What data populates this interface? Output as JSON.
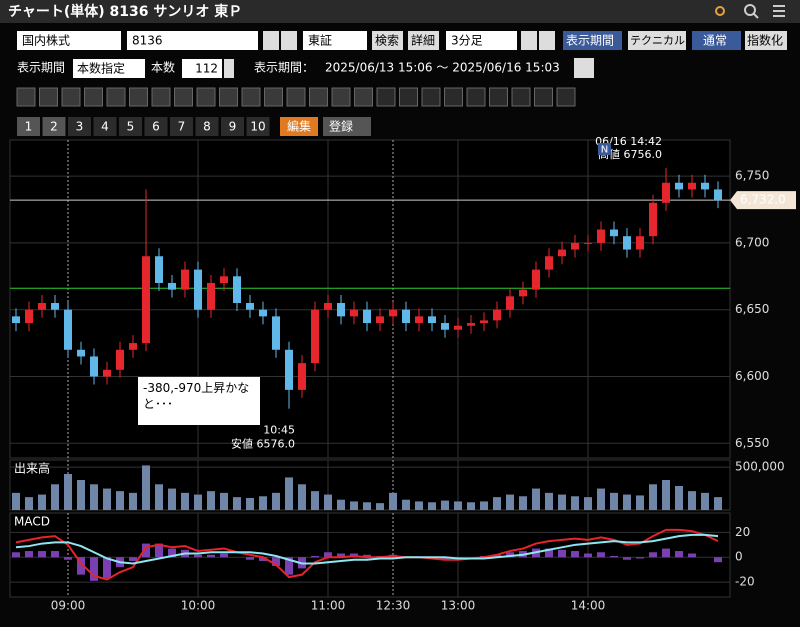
{
  "header": {
    "title": "チャート(単体) 8136 サンリオ 東Ｐ"
  },
  "toolbar": {
    "market": "国内株式",
    "code": "8136",
    "exchange": "東証",
    "search": "検索",
    "detail": "詳細",
    "interval": "3分足",
    "period_button": "表示期間",
    "technical": "テクニカル",
    "normal": "通常",
    "index": "指数化"
  },
  "settings": {
    "period_label": "表示期間",
    "period_mode": "本数指定",
    "count_label": "本数",
    "count": 112,
    "range_label": "表示期間：",
    "range": "2025/06/13 15:06 ～ 2025/06/16 15:03"
  },
  "tabs": [
    "1",
    "2",
    "3",
    "4",
    "5",
    "6",
    "7",
    "8",
    "9",
    "10"
  ],
  "edit": "編集",
  "register": "登録",
  "chart_data": [
    {
      "type": "candlestick",
      "categories": [
        null,
        null,
        null,
        null,
        "09:00",
        null,
        null,
        null,
        null,
        null,
        null,
        null,
        null,
        null,
        "10:00",
        null,
        null,
        null,
        null,
        null,
        null,
        null,
        null,
        null,
        "11:00",
        null,
        null,
        null,
        null,
        "12:30",
        null,
        null,
        null,
        null,
        "13:00",
        null,
        null,
        null,
        null,
        null,
        null,
        null,
        null,
        null,
        "14:00",
        null,
        null,
        null,
        null,
        null,
        null,
        null,
        null,
        null,
        null
      ],
      "open": [
        6645,
        6640,
        6650,
        6655,
        6650,
        6620,
        6615,
        6600,
        6605,
        6620,
        6625,
        6690,
        6670,
        6665,
        6680,
        6650,
        6670,
        6675,
        6655,
        6650,
        6645,
        6620,
        6590,
        6610,
        6650,
        6655,
        6645,
        6650,
        6640,
        6645,
        6650,
        6640,
        6645,
        6640,
        6635,
        6638,
        6640,
        6642,
        6650,
        6660,
        6665,
        6680,
        6690,
        6695,
        6700,
        6700,
        6710,
        6705,
        6695,
        6705,
        6730,
        6745,
        6740,
        6745,
        6740
      ],
      "high": [
        6651,
        6656,
        6661,
        6661,
        6656,
        6626,
        6621,
        6611,
        6626,
        6631,
        6740,
        6696,
        6676,
        6686,
        6686,
        6676,
        6681,
        6681,
        6661,
        6656,
        6651,
        6626,
        6616,
        6656,
        6661,
        6661,
        6656,
        6656,
        6651,
        6656,
        6656,
        6651,
        6651,
        6646,
        6644,
        6646,
        6648,
        6656,
        6666,
        6671,
        6686,
        6696,
        6701,
        6706,
        6706,
        6716,
        6716,
        6711,
        6711,
        6736,
        6756,
        6751,
        6751,
        6751,
        6746
      ],
      "low": [
        6634,
        6634,
        6644,
        6644,
        6614,
        6609,
        6594,
        6594,
        6599,
        6614,
        6619,
        6664,
        6659,
        6659,
        6644,
        6644,
        6664,
        6649,
        6644,
        6639,
        6614,
        6576,
        6584,
        6604,
        6644,
        6639,
        6639,
        6634,
        6634,
        6639,
        6634,
        6634,
        6634,
        6629,
        6629,
        6632,
        6634,
        6636,
        6644,
        6654,
        6659,
        6674,
        6684,
        6689,
        6694,
        6694,
        6699,
        6689,
        6689,
        6699,
        6724,
        6734,
        6734,
        6734,
        6726
      ],
      "close": [
        6640,
        6650,
        6655,
        6650,
        6620,
        6615,
        6600,
        6605,
        6620,
        6625,
        6690,
        6670,
        6665,
        6680,
        6650,
        6670,
        6675,
        6655,
        6650,
        6645,
        6620,
        6590,
        6610,
        6650,
        6655,
        6645,
        6650,
        6640,
        6645,
        6650,
        6640,
        6645,
        6640,
        6635,
        6638,
        6640,
        6642,
        6650,
        6660,
        6665,
        6680,
        6690,
        6695,
        6700,
        6700,
        6710,
        6705,
        6695,
        6705,
        6730,
        6745,
        6740,
        6745,
        6740,
        6732
      ],
      "up_color": "#e5262c",
      "down_color": "#5fb8e8",
      "ylim": [
        6539,
        6777
      ],
      "yticks": [
        {
          "value": 6550,
          "label": "6,550"
        },
        {
          "value": 6600,
          "label": "6,600"
        },
        {
          "value": 6650,
          "label": "6,650"
        },
        {
          "value": 6700,
          "label": "6,700"
        },
        {
          "value": 6750,
          "label": "6,750"
        }
      ],
      "grid": true,
      "last_price": {
        "value": 6732,
        "label": "6,732.0"
      },
      "reference_line": 6666,
      "high_marker": {
        "time": "06/16 14:42",
        "label": "高値 6756.0"
      },
      "low_marker": {
        "time": "10:45",
        "label": "安値 6576.0"
      },
      "news_marker": "N",
      "note": "-380,-970上昇かなと･･･"
    },
    {
      "type": "bar",
      "title": "出来高",
      "color": "#6f86a8",
      "values": [
        200000,
        150000,
        180000,
        300000,
        420000,
        350000,
        300000,
        250000,
        220000,
        200000,
        520000,
        300000,
        250000,
        200000,
        180000,
        220000,
        200000,
        150000,
        140000,
        160000,
        200000,
        380000,
        300000,
        220000,
        180000,
        120000,
        100000,
        90000,
        80000,
        200000,
        120000,
        100000,
        90000,
        110000,
        100000,
        90000,
        100000,
        150000,
        180000,
        160000,
        250000,
        200000,
        180000,
        160000,
        150000,
        250000,
        200000,
        180000,
        170000,
        300000,
        350000,
        280000,
        220000,
        200000,
        150000
      ],
      "ylim": [
        0,
        560000
      ],
      "yticks": [
        {
          "value": 500000,
          "label": "500,000"
        }
      ]
    },
    {
      "type": "line",
      "title": "MACD",
      "series": [
        {
          "color": "#e8232a",
          "values": [
            12,
            14,
            16,
            17,
            10,
            -5,
            -15,
            -18,
            -12,
            -8,
            8,
            10,
            8,
            9,
            5,
            6,
            7,
            4,
            2,
            0,
            -6,
            -16,
            -14,
            -4,
            0,
            0,
            1,
            0,
            0,
            1,
            0,
            0,
            -1,
            -2,
            -2,
            -1,
            0,
            2,
            5,
            7,
            11,
            13,
            14,
            15,
            14,
            16,
            14,
            10,
            11,
            17,
            22,
            22,
            21,
            18,
            13
          ]
        },
        {
          "color": "#8ee6f0",
          "values": [
            8,
            9,
            11,
            12,
            12,
            9,
            4,
            -1,
            -4,
            -5,
            -3,
            -1,
            1,
            3,
            3,
            4,
            4,
            4,
            4,
            3,
            1,
            -2,
            -5,
            -5,
            -4,
            -3,
            -2,
            -2,
            -1,
            -1,
            0,
            0,
            0,
            0,
            -1,
            -1,
            -1,
            0,
            1,
            2,
            4,
            6,
            8,
            10,
            11,
            12,
            13,
            12,
            12,
            13,
            15,
            17,
            18,
            18,
            17
          ]
        }
      ],
      "histogram": {
        "color": "#7a3fb0",
        "values": [
          4,
          5,
          5,
          5,
          -2,
          -14,
          -19,
          -17,
          -8,
          -3,
          11,
          11,
          7,
          6,
          2,
          2,
          3,
          0,
          -2,
          -3,
          -7,
          -14,
          -9,
          1,
          4,
          3,
          3,
          2,
          1,
          2,
          0,
          0,
          -1,
          -2,
          -1,
          0,
          1,
          2,
          4,
          5,
          7,
          7,
          6,
          5,
          3,
          4,
          1,
          -2,
          -1,
          4,
          7,
          5,
          3,
          0,
          -4
        ]
      },
      "ylim": [
        -32,
        34
      ],
      "yticks": [
        -20,
        0,
        20
      ]
    }
  ]
}
